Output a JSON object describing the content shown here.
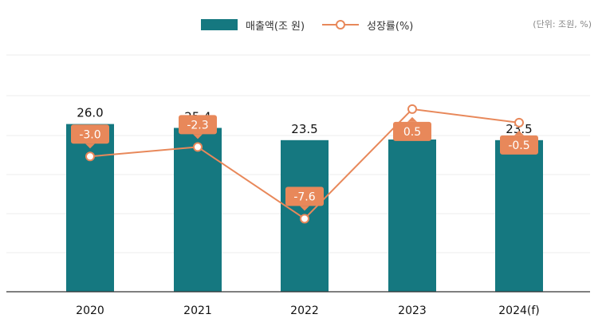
{
  "legend": {
    "bar_label": "매출액(조 원)",
    "line_label": "성장률(%)",
    "bar_icon": "bar-swatch",
    "line_icon": "line-marker"
  },
  "unit_note": "(단위: 조원, %)",
  "colors": {
    "bar": "#157880",
    "line": "#E8885A",
    "label_box": "#E8885A",
    "grid": "#EDEDED",
    "axis": "#333333"
  },
  "chart_data": {
    "type": "bar",
    "title": "",
    "xlabel": "",
    "ylabel": "",
    "categories": [
      "2020",
      "2021",
      "2022",
      "2023",
      "2024(f)"
    ],
    "grid": true,
    "legend_position": "top-center",
    "series": [
      {
        "name": "매출액(조 원)",
        "type": "bar",
        "values": [
          26.0,
          25.4,
          23.5,
          23.6,
          23.5
        ],
        "labels": [
          "26.0",
          "25.4",
          "23.5",
          "23.6",
          "23.5"
        ],
        "ylim": [
          0,
          36.7
        ]
      },
      {
        "name": "성장률(%)",
        "type": "line",
        "values": [
          -3.0,
          -2.3,
          -7.6,
          0.5,
          -0.5
        ],
        "labels": [
          "-3.0",
          "-2.3",
          "-7.6",
          "0.5",
          "-0.5"
        ],
        "label_side": [
          "above",
          "above",
          "above",
          "below",
          "below"
        ],
        "ylim": [
          -13.0,
          4.5
        ]
      }
    ]
  }
}
